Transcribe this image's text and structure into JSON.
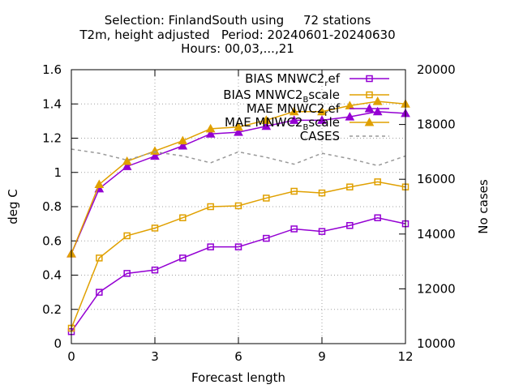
{
  "chart_data": {
    "type": "line",
    "title_lines": [
      "Selection: FinlandSouth using     72 stations",
      "T2m, height adjusted   Period: 20240601-20240630",
      "Hours: 00,03,...,21"
    ],
    "xlabel": "Forecast length",
    "ylabel": "deg C",
    "y2label": "No cases",
    "xlim": [
      0,
      12
    ],
    "ylim": [
      0,
      1.6
    ],
    "y2lim": [
      10000,
      20000
    ],
    "x_ticks": [
      0,
      3,
      6,
      9,
      12
    ],
    "y_ticks": [
      "0",
      "0.2",
      "0.4",
      "0.6",
      "0.8",
      "1",
      "1.2",
      "1.4",
      "1.6"
    ],
    "y_tick_values": [
      0,
      0.2,
      0.4,
      0.6,
      0.8,
      1.0,
      1.2,
      1.4,
      1.6
    ],
    "y2_ticks": [
      "10000",
      "12000",
      "14000",
      "16000",
      "18000",
      "20000"
    ],
    "y2_tick_values": [
      10000,
      12000,
      14000,
      16000,
      18000,
      20000
    ],
    "grid": "on",
    "legend_position": "top-right",
    "x": [
      0,
      1,
      2,
      3,
      4,
      5,
      6,
      7,
      8,
      9,
      10,
      11,
      12
    ],
    "series": [
      {
        "name": "BIAS MNWC2_ref",
        "legend_main": "BIAS MNWC2",
        "legend_sub": "r",
        "legend_tail": "ef",
        "color": "#9400d3",
        "marker": "square",
        "axis": "y1",
        "values": [
          0.07,
          0.3,
          0.41,
          0.43,
          0.5,
          0.565,
          0.565,
          0.615,
          0.67,
          0.655,
          0.69,
          0.735,
          0.7
        ]
      },
      {
        "name": "BIAS MNWC2_Bscale",
        "legend_main": "BIAS MNWC2",
        "legend_sub": "B",
        "legend_tail": "scale",
        "color": "#e0a000",
        "marker": "square",
        "axis": "y1",
        "values": [
          0.09,
          0.5,
          0.63,
          0.675,
          0.735,
          0.8,
          0.805,
          0.85,
          0.89,
          0.88,
          0.915,
          0.945,
          0.915
        ]
      },
      {
        "name": "MAE MNWC2_ref",
        "legend_main": "MAE MNWC2",
        "legend_sub": "r",
        "legend_tail": "ef",
        "color": "#9400d3",
        "marker": "triangle",
        "axis": "y1",
        "values": [
          0.525,
          0.905,
          1.035,
          1.095,
          1.155,
          1.225,
          1.235,
          1.27,
          1.305,
          1.305,
          1.325,
          1.355,
          1.345
        ]
      },
      {
        "name": "MAE MNWC2_Bscale",
        "legend_main": "MAE MNWC2",
        "legend_sub": "B",
        "legend_tail": "scale",
        "color": "#e0a000",
        "marker": "triangle",
        "axis": "y1",
        "values": [
          0.525,
          0.93,
          1.065,
          1.125,
          1.185,
          1.255,
          1.265,
          1.305,
          1.355,
          1.355,
          1.39,
          1.415,
          1.4
        ]
      },
      {
        "name": "CASES",
        "legend_main": "CASES",
        "legend_sub": "",
        "legend_tail": "",
        "color": "#999999",
        "marker": "none",
        "dashed": true,
        "axis": "y2",
        "values": [
          17100,
          16950,
          16700,
          17000,
          16850,
          16600,
          17000,
          16800,
          16550,
          16950,
          16750,
          16500,
          16850
        ]
      }
    ]
  }
}
